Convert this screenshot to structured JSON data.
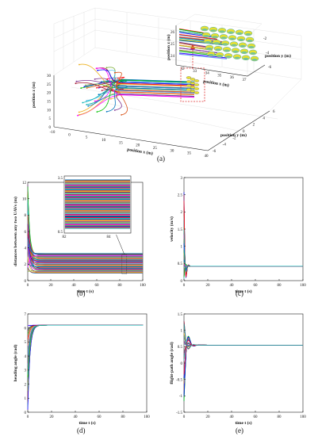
{
  "chart_data": [
    {
      "id": "a",
      "type": "scatter",
      "caption": "(a)",
      "xlabel": "position x (m)",
      "ylabel": "position y (m)",
      "zlabel": "position z (m)",
      "x_ticks": [
        "-10",
        "0",
        "5",
        "10",
        "15",
        "20",
        "25",
        "30",
        "35",
        "40"
      ],
      "y_ticks": [
        "-6",
        "-4",
        "-2",
        "0",
        "2",
        "4",
        "6"
      ],
      "z_ticks": [
        "0",
        "5",
        "10",
        "15",
        "20",
        "25",
        "30"
      ],
      "inset": {
        "xlabel": "position x (m)",
        "ylabel": "position y (m)",
        "zlabel": "position z (m)",
        "x_ticks": [
          "32",
          "33",
          "34",
          "35",
          "36",
          "37"
        ],
        "y_ticks": [
          "-6",
          "-4",
          "-2"
        ],
        "z_ticks": [
          "24",
          "25",
          "26"
        ]
      }
    },
    {
      "id": "b",
      "type": "line",
      "caption": "(b)",
      "xlabel": "time t (s)",
      "ylabel": "distances between any two UAVs (m)",
      "xlim": [
        0,
        100
      ],
      "ylim": [
        0,
        12
      ],
      "x_ticks": [
        "0",
        "20",
        "40",
        "60",
        "80",
        "100"
      ],
      "y_ticks": [
        "0",
        "2",
        "4",
        "6",
        "8",
        "10",
        "12"
      ],
      "annotation": "84",
      "inset": {
        "xlim": [
          82,
          85
        ],
        "ylim": [
          0.5,
          3.5
        ],
        "x_ticks": [
          "82",
          "84"
        ],
        "y_ticks": [
          "0.5",
          "3.5"
        ]
      }
    },
    {
      "id": "c",
      "type": "line",
      "caption": "(c)",
      "xlabel": "time t (s)",
      "ylabel": "velocity (m/s)",
      "xlim": [
        0,
        100
      ],
      "ylim": [
        0,
        3
      ],
      "x_ticks": [
        "0",
        "20",
        "40",
        "60",
        "80",
        "100"
      ],
      "y_ticks": [
        "0",
        "0.5",
        "1",
        "1.5",
        "2",
        "2.5",
        "3"
      ],
      "steady_value": 0.42
    },
    {
      "id": "d",
      "type": "line",
      "caption": "(d)",
      "xlabel": "time t (s)",
      "ylabel": "heading angle (rad)",
      "xlim": [
        0,
        100
      ],
      "ylim": [
        0,
        7
      ],
      "x_ticks": [
        "0",
        "20",
        "40",
        "60",
        "80",
        "100"
      ],
      "y_ticks": [
        "0",
        "1",
        "2",
        "3",
        "4",
        "5",
        "6",
        "7"
      ],
      "steady_value": 6.2
    },
    {
      "id": "e",
      "type": "line",
      "caption": "(e)",
      "xlabel": "time t (s)",
      "ylabel": "flight-path angle (rad)",
      "xlim": [
        0,
        100
      ],
      "ylim": [
        -1.5,
        1.5
      ],
      "x_ticks": [
        "0",
        "20",
        "40",
        "60",
        "80",
        "100"
      ],
      "y_ticks": [
        "-1.5",
        "-1",
        "-0.5",
        "0",
        "0.5",
        "1",
        "1.5"
      ],
      "steady_value": 0.55
    }
  ],
  "colors": {
    "palette": [
      "#0072bd",
      "#d95319",
      "#edb120",
      "#7e2f8e",
      "#77ac30",
      "#4dbeee",
      "#a2142f",
      "#ff00ff",
      "#00c000",
      "#1010ff",
      "#ff2020",
      "#00b0b0"
    ],
    "highlight_box": "#e03030",
    "disc": "#e8e030"
  }
}
